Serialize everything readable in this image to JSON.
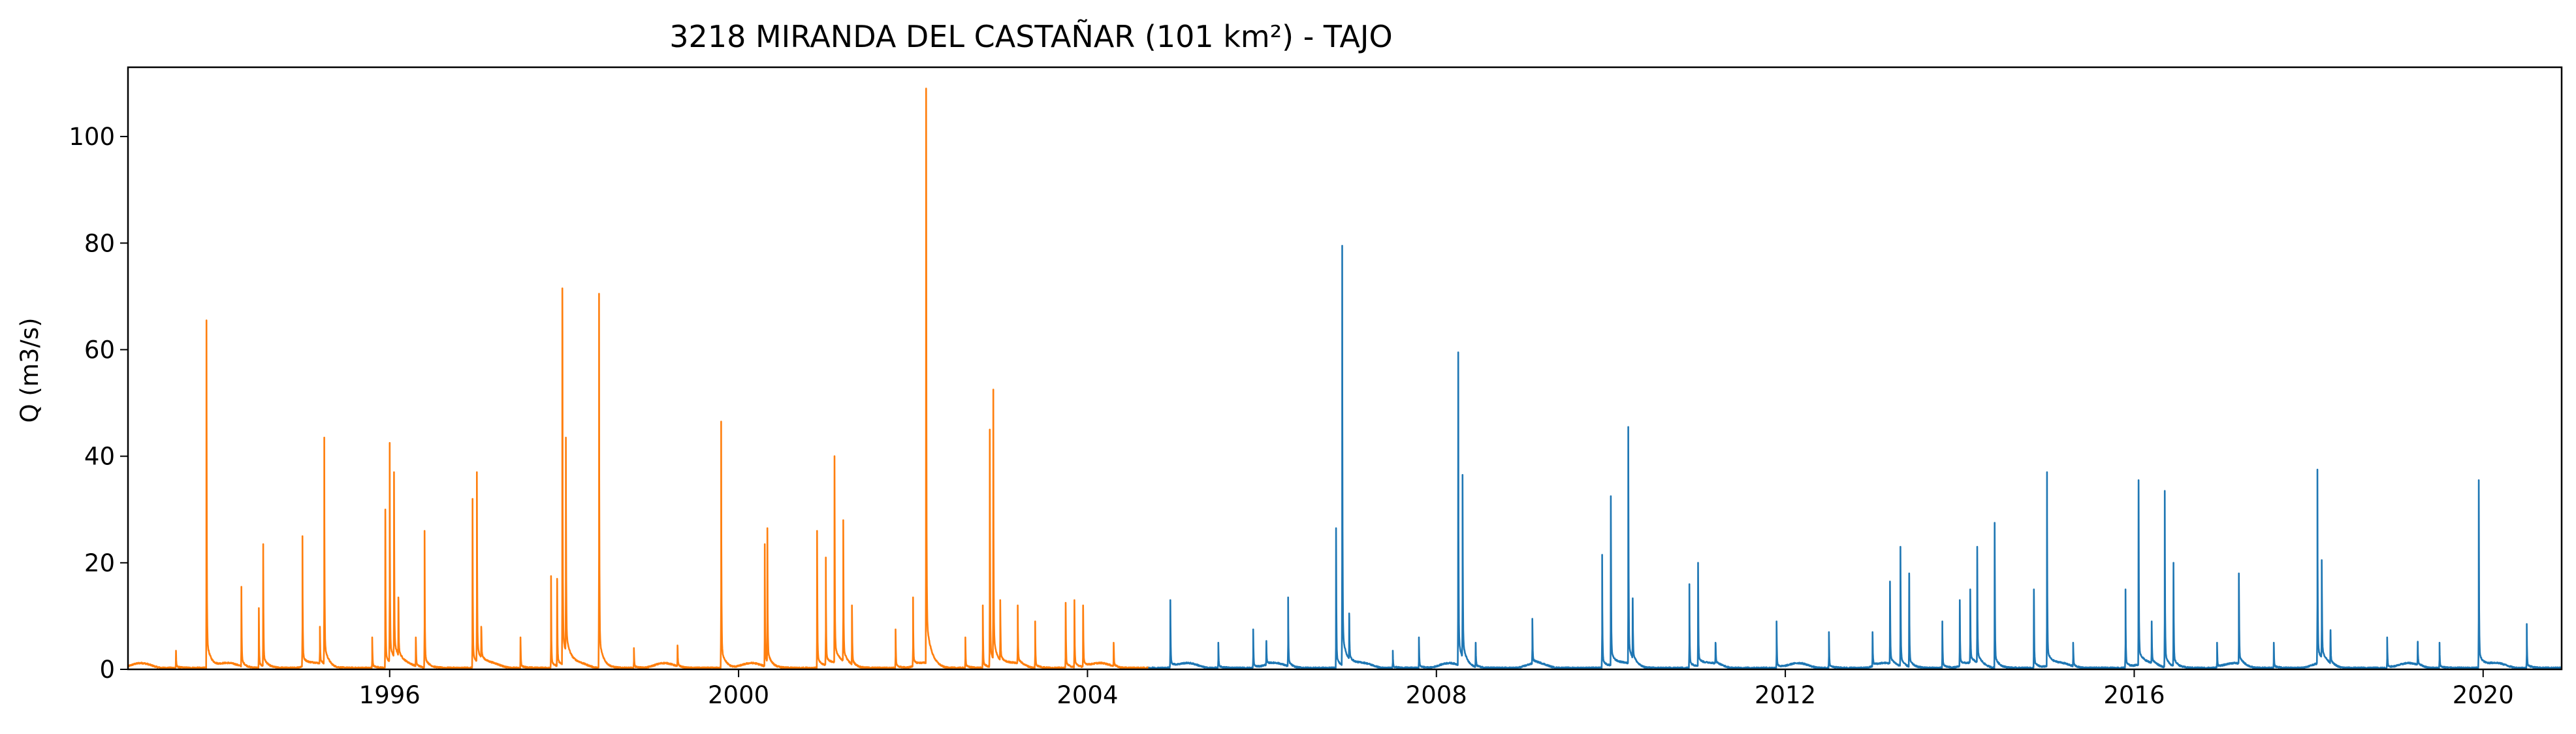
{
  "chart_data": {
    "type": "line",
    "title": "3218 MIRANDA DEL CASTAÑAR (101 km²) - TAJO",
    "xlabel": "",
    "ylabel": "Q (m3/s)",
    "xlim": [
      1993.0,
      2020.9
    ],
    "ylim": [
      0,
      113
    ],
    "xticks": [
      1996,
      2000,
      2004,
      2008,
      2012,
      2016,
      2020
    ],
    "yticks": [
      0,
      20,
      40,
      60,
      80,
      100
    ],
    "grid": false,
    "legend": "none",
    "series": [
      {
        "color": "#ff7f0e",
        "peaks": [
          [
            1993.55,
            3.5
          ],
          [
            1993.9,
            65.5
          ],
          [
            1994.3,
            15.5
          ],
          [
            1994.5,
            11.5
          ],
          [
            1994.55,
            23.5
          ],
          [
            1995.0,
            25
          ],
          [
            1995.2,
            8
          ],
          [
            1995.25,
            43.5
          ],
          [
            1995.8,
            6
          ],
          [
            1995.95,
            30
          ],
          [
            1996.0,
            42.5
          ],
          [
            1996.05,
            37
          ],
          [
            1996.1,
            13.5
          ],
          [
            1996.3,
            6
          ],
          [
            1996.4,
            26
          ],
          [
            1996.95,
            32
          ],
          [
            1997.0,
            37
          ],
          [
            1997.05,
            8
          ],
          [
            1997.5,
            6
          ],
          [
            1997.85,
            17.5
          ],
          [
            1997.92,
            17
          ],
          [
            1997.98,
            71.5
          ],
          [
            1998.02,
            43.5
          ],
          [
            1998.4,
            70.5
          ],
          [
            1998.8,
            4
          ],
          [
            1999.3,
            4.5
          ],
          [
            1999.8,
            46.5
          ],
          [
            2000.3,
            23.5
          ],
          [
            2000.33,
            26.5
          ],
          [
            2000.9,
            26
          ],
          [
            2001.0,
            21
          ],
          [
            2001.1,
            40
          ],
          [
            2001.2,
            28
          ],
          [
            2001.3,
            12
          ],
          [
            2001.8,
            7.5
          ],
          [
            2002.0,
            13.5
          ],
          [
            2002.15,
            109
          ],
          [
            2002.6,
            6
          ],
          [
            2002.8,
            12
          ],
          [
            2002.88,
            45
          ],
          [
            2002.92,
            52.5
          ],
          [
            2003.0,
            13
          ],
          [
            2003.2,
            12
          ],
          [
            2003.4,
            9
          ],
          [
            2003.75,
            12.5
          ],
          [
            2003.85,
            13
          ],
          [
            2003.95,
            12
          ],
          [
            2004.3,
            5
          ]
        ]
      },
      {
        "color": "#1f77b4",
        "peaks": [
          [
            2004.95,
            13
          ],
          [
            2005.5,
            5
          ],
          [
            2005.9,
            7.5
          ],
          [
            2006.05,
            5
          ],
          [
            2006.3,
            13.5
          ],
          [
            2006.85,
            26.5
          ],
          [
            2006.92,
            79.5
          ],
          [
            2007.0,
            10.5
          ],
          [
            2007.5,
            3.5
          ],
          [
            2007.8,
            6
          ],
          [
            2008.25,
            59.5
          ],
          [
            2008.3,
            36.5
          ],
          [
            2008.45,
            5
          ],
          [
            2009.1,
            9.5
          ],
          [
            2009.9,
            21.5
          ],
          [
            2010.0,
            32.5
          ],
          [
            2010.2,
            45.5
          ],
          [
            2010.25,
            12.5
          ],
          [
            2010.9,
            16
          ],
          [
            2011.0,
            20
          ],
          [
            2011.2,
            5
          ],
          [
            2011.9,
            9
          ],
          [
            2012.5,
            7
          ],
          [
            2013.0,
            7
          ],
          [
            2013.2,
            16.5
          ],
          [
            2013.32,
            23
          ],
          [
            2013.42,
            18
          ],
          [
            2013.8,
            9
          ],
          [
            2014.0,
            13
          ],
          [
            2014.12,
            15
          ],
          [
            2014.2,
            23
          ],
          [
            2014.4,
            27.5
          ],
          [
            2014.85,
            15
          ],
          [
            2015.0,
            37
          ],
          [
            2015.3,
            5
          ],
          [
            2015.9,
            15
          ],
          [
            2016.05,
            35.5
          ],
          [
            2016.2,
            9
          ],
          [
            2016.35,
            33.5
          ],
          [
            2016.45,
            20
          ],
          [
            2016.95,
            5
          ],
          [
            2017.2,
            18
          ],
          [
            2017.6,
            5
          ],
          [
            2018.1,
            37.5
          ],
          [
            2018.15,
            20.5
          ],
          [
            2018.25,
            7
          ],
          [
            2018.9,
            6
          ],
          [
            2019.25,
            5
          ],
          [
            2019.5,
            5
          ],
          [
            2019.95,
            35.5
          ],
          [
            2020.5,
            8.5
          ]
        ]
      }
    ],
    "segments": [
      [
        1993.0,
        2004.7
      ],
      [
        2004.7,
        2020.9
      ]
    ]
  }
}
